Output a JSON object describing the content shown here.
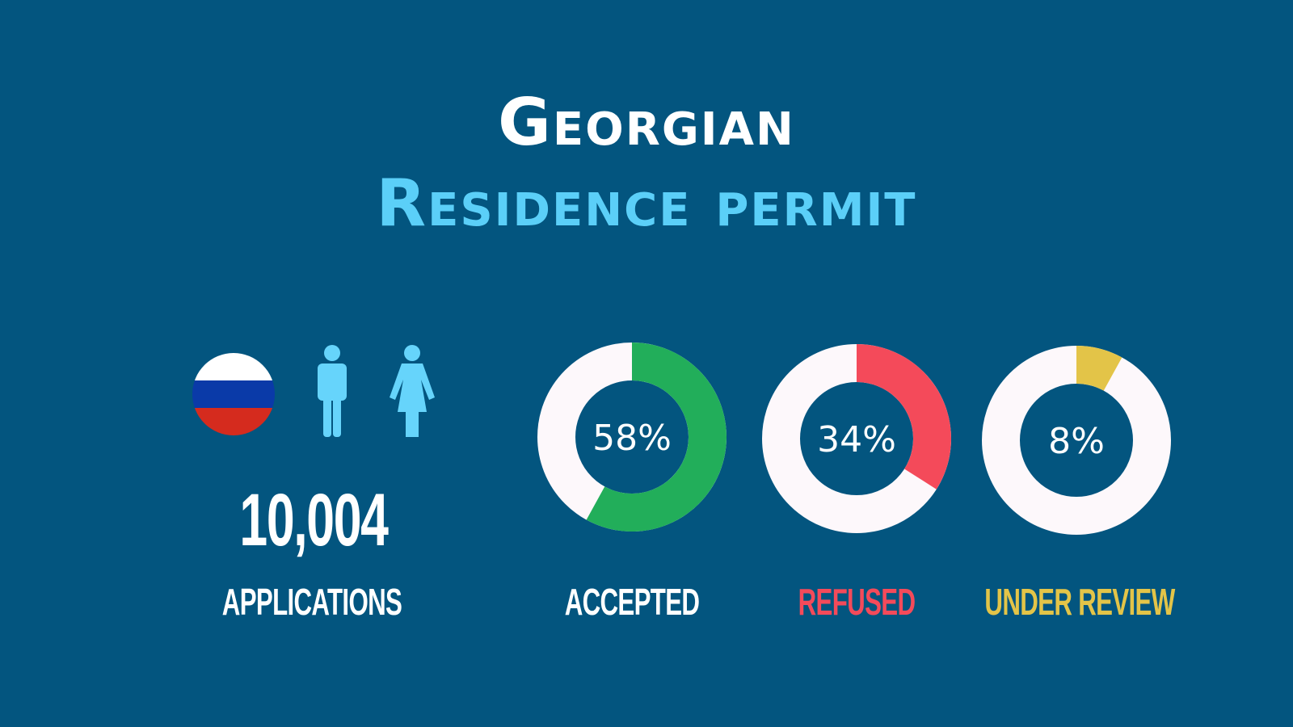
{
  "title": {
    "line1": "Georgian",
    "line2": "Residence permit"
  },
  "applications": {
    "count": "10,004",
    "label": "APPLICATIONS",
    "flag": "russia-flag-icon",
    "icons": [
      "man-icon",
      "woman-icon"
    ]
  },
  "colors": {
    "background": "#03557f",
    "title_accent": "#5bcff8",
    "ring_base": "#fdf8fb",
    "accepted": "#22ae5a",
    "refused": "#f44a5a",
    "under_review": "#e3c448",
    "person_icon": "#66d4fb"
  },
  "chart_data": [
    {
      "type": "pie",
      "donut": true,
      "label": "ACCEPTED",
      "value": 58,
      "value_label": "58%",
      "color": "#22ae5a",
      "label_color": "#ffffff"
    },
    {
      "type": "pie",
      "donut": true,
      "label": "REFUSED",
      "value": 34,
      "value_label": "34%",
      "color": "#f44a5a",
      "label_color": "#f44a5a"
    },
    {
      "type": "pie",
      "donut": true,
      "label": "UNDER REVIEW",
      "value": 8,
      "value_label": "8%",
      "color": "#e3c448",
      "label_color": "#e3c448"
    }
  ]
}
